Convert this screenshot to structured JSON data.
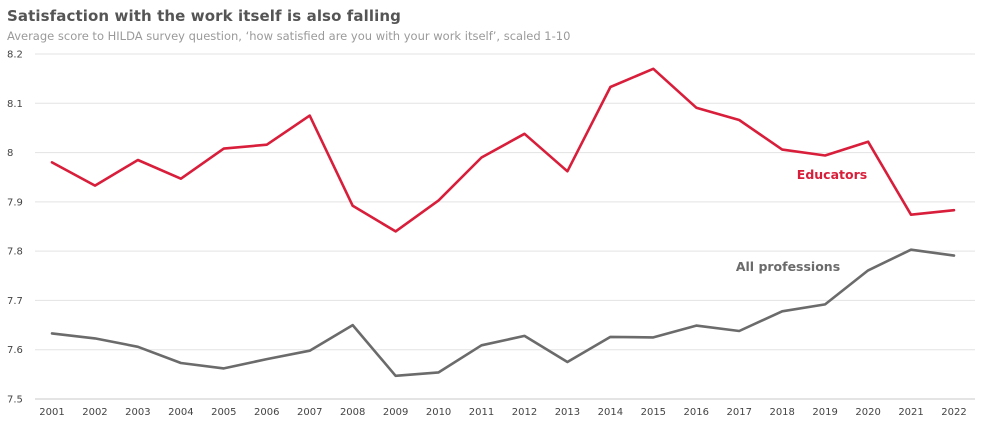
{
  "chart_data": {
    "type": "line",
    "title": "Satisfaction with the work itself is also falling",
    "subtitle": "Average score to HILDA survey question, ‘how satisfied are you with your work itself’, scaled 1-10",
    "xlabel": "",
    "ylabel": "",
    "x": [
      2001,
      2002,
      2003,
      2004,
      2005,
      2006,
      2007,
      2008,
      2009,
      2010,
      2011,
      2012,
      2013,
      2014,
      2015,
      2016,
      2017,
      2018,
      2019,
      2020,
      2021,
      2022
    ],
    "ylim": [
      7.5,
      8.2
    ],
    "yticks": [
      "7.5",
      "7.6",
      "7.7",
      "7.8",
      "7.9",
      "8",
      "8.1",
      "8.2"
    ],
    "grid": true,
    "series": [
      {
        "name": "Educators",
        "color": "#d81e3a",
        "values": [
          7.98,
          7.933,
          7.985,
          7.947,
          8.008,
          8.016,
          8.075,
          7.892,
          7.84,
          7.903,
          7.99,
          8.038,
          7.962,
          8.133,
          8.17,
          8.091,
          8.066,
          8.006,
          7.994,
          8.022,
          7.874,
          7.883
        ]
      },
      {
        "name": "All professions",
        "color": "#6b6b6b",
        "values": [
          7.633,
          7.623,
          7.606,
          7.573,
          7.562,
          7.581,
          7.598,
          7.65,
          7.547,
          7.554,
          7.609,
          7.628,
          7.575,
          7.626,
          7.625,
          7.649,
          7.638,
          7.678,
          7.692,
          7.761,
          7.803,
          7.791
        ]
      }
    ]
  }
}
